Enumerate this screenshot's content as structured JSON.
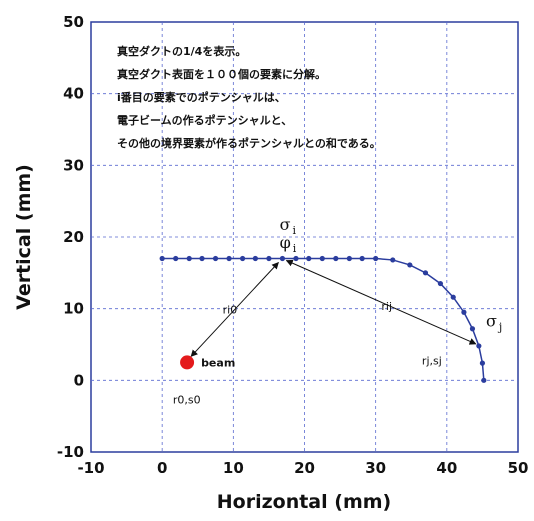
{
  "chart_data": {
    "type": "scatter",
    "xlabel": "Horizontal (mm)",
    "ylabel": "Vertical (mm)",
    "xlim": [
      -10,
      50
    ],
    "ylim": [
      -10,
      50
    ],
    "x_ticks": [
      -10,
      0,
      10,
      20,
      30,
      40,
      50
    ],
    "y_ticks": [
      -10,
      0,
      10,
      20,
      30,
      40,
      50
    ],
    "grid": true,
    "series": [
      {
        "color": "#2b3d9e",
        "x": [
          0,
          1.9,
          3.8,
          5.6,
          7.5,
          9.4,
          11.3,
          13.1,
          15.0,
          16.9,
          18.8,
          20.6,
          22.5,
          24.4,
          26.3,
          28.1,
          30.0,
          32.4,
          34.8,
          37.0,
          39.1,
          40.9,
          42.4,
          43.6,
          44.5,
          45.0,
          45.2
        ],
        "y": [
          17,
          17,
          17,
          17,
          17,
          17,
          17,
          17,
          17,
          17,
          17,
          17,
          17,
          17,
          17,
          17,
          17,
          16.8,
          16.1,
          15.0,
          13.5,
          11.6,
          9.5,
          7.2,
          4.8,
          2.4,
          0
        ]
      }
    ],
    "beam_point": {
      "x": 3.5,
      "y": 2.5,
      "color": "#e41a1c",
      "label": "beam"
    },
    "annotations": {
      "note_lines": [
        "真空ダクトの1/4を表示。",
        "真空ダクト表面を１００個の要素に分解。",
        "i番目の要素でのポテンシャルは、",
        "電子ビームの作るポテンシャルと、",
        "その他の境界要素が作るポテンシャルとの和である。"
      ],
      "sigma_i": {
        "symbol": "σ",
        "sub": "i",
        "x": 16.5,
        "y": 21
      },
      "phi_i": {
        "symbol": "φ",
        "sub": "i",
        "x": 16.5,
        "y": 18.5
      },
      "sigma_j": {
        "symbol": "σ",
        "sub": "j",
        "x": 45.5,
        "y": 7.5
      },
      "ri0": {
        "text": "ri0",
        "x": 8.5,
        "y": 9.3
      },
      "rij": {
        "text": "rij",
        "x": 30.8,
        "y": 9.8
      },
      "rjsj": {
        "text": "rj,sj",
        "x": 36.5,
        "y": 2.2
      },
      "r0s0": {
        "text": "r0,s0",
        "x": 1.5,
        "y": -3.2
      },
      "point_i": {
        "x": 16.9,
        "y": 17
      },
      "point_j": {
        "x": 44.5,
        "y": 4.8
      }
    }
  }
}
